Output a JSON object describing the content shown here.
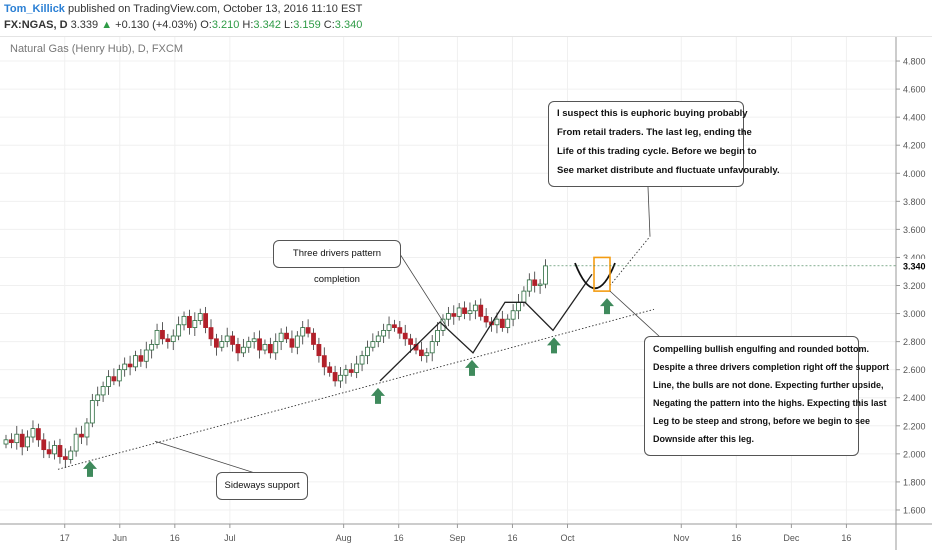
{
  "header": {
    "author": "Tom_Killick",
    "published_text": "published on TradingView.com, October 13, 2016 11:10 EST",
    "symbol": "FX:NGAS, D",
    "last": "3.339",
    "change": "+0.130 (+4.03%)",
    "o_label": "O:",
    "o_value": "3.210",
    "h_label": "H:",
    "h_value": "3.342",
    "l_label": "L:",
    "l_value": "3.159",
    "c_label": "C:",
    "c_value": "3.340"
  },
  "chart_data": {
    "type": "candlestick",
    "title": "Natural Gas (Henry Hub), D, FXCM",
    "ylim": [
      1.5,
      4.9
    ],
    "y_ticks": [
      "4.800",
      "4.600",
      "4.400",
      "4.200",
      "4.000",
      "3.800",
      "3.600",
      "3.400",
      "3.200",
      "3.000",
      "2.800",
      "2.600",
      "2.400",
      "2.200",
      "2.000",
      "1.800",
      "1.600"
    ],
    "y_tick_values": [
      4.8,
      4.6,
      4.4,
      4.2,
      4.0,
      3.8,
      3.6,
      3.4,
      3.2,
      3.0,
      2.8,
      2.6,
      2.4,
      2.2,
      2.0,
      1.8,
      1.6
    ],
    "price_label": "3.340",
    "price_value": 3.34,
    "x_ticks": [
      "17",
      "Jun",
      "16",
      "Jul",
      "Aug",
      "16",
      "Sep",
      "16",
      "Oct",
      "Nov",
      "16",
      "Dec",
      "16"
    ],
    "x_tick_days": [
      16,
      31,
      46,
      61,
      92,
      107,
      123,
      138,
      153,
      184,
      199,
      214,
      229
    ],
    "closes": [
      2.1,
      2.08,
      2.14,
      2.05,
      2.12,
      2.18,
      2.1,
      2.03,
      2.0,
      2.06,
      1.98,
      1.96,
      2.02,
      2.14,
      2.12,
      2.22,
      2.38,
      2.42,
      2.48,
      2.55,
      2.52,
      2.6,
      2.64,
      2.62,
      2.7,
      2.66,
      2.74,
      2.78,
      2.88,
      2.82,
      2.8,
      2.84,
      2.92,
      2.98,
      2.9,
      2.95,
      3.0,
      2.9,
      2.82,
      2.76,
      2.8,
      2.84,
      2.78,
      2.72,
      2.76,
      2.8,
      2.82,
      2.74,
      2.78,
      2.72,
      2.8,
      2.86,
      2.82,
      2.76,
      2.84,
      2.9,
      2.86,
      2.78,
      2.7,
      2.62,
      2.58,
      2.52,
      2.56,
      2.6,
      2.58,
      2.64,
      2.7,
      2.76,
      2.8,
      2.84,
      2.88,
      2.92,
      2.9,
      2.86,
      2.82,
      2.78,
      2.74,
      2.7,
      2.72,
      2.8,
      2.88,
      2.96,
      3.0,
      2.98,
      3.04,
      3.0,
      3.02,
      3.06,
      2.98,
      2.94,
      2.92,
      2.96,
      2.9,
      2.96,
      3.02,
      3.08,
      3.16,
      3.24,
      3.2,
      3.21,
      3.34
    ]
  },
  "annotations": {
    "top_note": [
      "I suspect this is euphoric buying probably",
      "From retail traders. The last leg, ending the",
      "Life of this trading cycle. Before we begin to",
      "See market distribute and fluctuate unfavourably."
    ],
    "three_drivers": "Three drivers pattern completion",
    "sideways": "Sideways support",
    "bottom_note": [
      "Compelling bullish engulfing and rounded bottom.",
      "Despite a three drivers completion right off the support",
      "Line, the bulls are not done. Expecting further upside,",
      "Negating the pattern into the highs. Expecting this last",
      "Leg to be steep and strong, before we begin to see",
      "Downside after this leg."
    ]
  },
  "colors": {
    "up": "#2e9b46",
    "down": "#b2202a",
    "arrow": "#3f8a5c",
    "highlight": "#f39c12"
  }
}
